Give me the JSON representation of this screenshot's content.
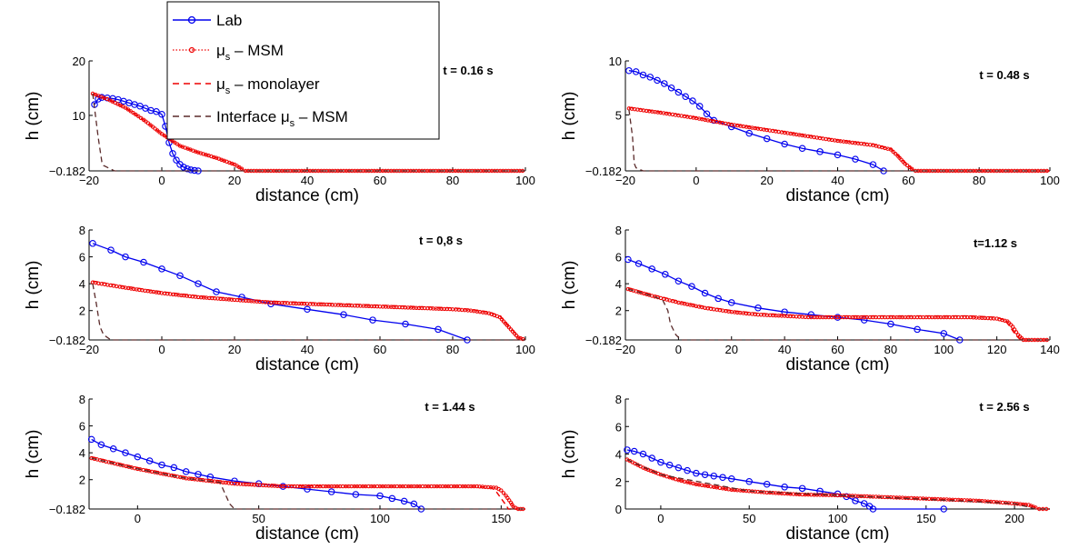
{
  "legend": {
    "entries": [
      {
        "name": "Lab",
        "color": "#0000ee",
        "style": "solid-circle"
      },
      {
        "name": "μ",
        "sub": "s",
        "suffix": " – MSM",
        "color": "#ee0000",
        "style": "dotted-circle"
      },
      {
        "name": "μ",
        "sub": "s",
        "suffix": " – monolayer",
        "color": "#ee0000",
        "style": "dashed"
      },
      {
        "name": "Interface μ",
        "sub": "s",
        "suffix": " – MSM",
        "color": "#5a2a2a",
        "style": "dashed"
      }
    ]
  },
  "chart_data": [
    {
      "type": "line",
      "title": "t = 0.16 s",
      "xlabel": "distance (cm)",
      "ylabel": "h (cm)",
      "xlim": [
        -20,
        100
      ],
      "ylim": [
        -0.182,
        20
      ],
      "xticks": [
        -20,
        0,
        20,
        40,
        60,
        80,
        100
      ],
      "xtick_labels": [
        "−20",
        "0",
        "20",
        "40",
        "60",
        "80",
        "100"
      ],
      "yticks": [
        -0.182,
        10,
        20
      ],
      "ytick_labels": [
        "−0.182",
        "10",
        "20"
      ],
      "series": [
        {
          "name": "Lab",
          "x": [
            -18.5,
            -17.5,
            -16.5,
            -15,
            -13.5,
            -12,
            -10.5,
            -9,
            -7.5,
            -6,
            -4.5,
            -3,
            -1.5,
            0,
            1,
            2,
            3,
            4,
            5,
            6,
            7,
            8,
            9,
            10
          ],
          "y": [
            12,
            13,
            13.3,
            13.2,
            13.1,
            12.9,
            12.6,
            12.3,
            12,
            11.7,
            11.3,
            10.9,
            10.7,
            10.2,
            8,
            5,
            3,
            1.8,
            1,
            0.5,
            0.2,
            0,
            -0.1,
            -0.182
          ]
        },
        {
          "name": "μs – MSM",
          "x": [
            -19,
            -15,
            -10,
            -5,
            0,
            5,
            10,
            15,
            20,
            22,
            23,
            30,
            40,
            50,
            60,
            70,
            80,
            90,
            100
          ],
          "y": [
            14,
            13,
            11.4,
            9.2,
            6.6,
            4.4,
            3.2,
            2.2,
            1,
            0.2,
            -0.182,
            -0.182,
            -0.182,
            -0.182,
            -0.182,
            -0.182,
            -0.182,
            -0.182,
            -0.182
          ]
        },
        {
          "name": "μs – monolayer",
          "x": [
            -19,
            -15,
            -10,
            -5,
            0,
            5,
            10,
            15,
            20,
            22,
            23,
            100
          ],
          "y": [
            14,
            13,
            11.4,
            9.2,
            6.6,
            4.4,
            3.2,
            2.2,
            1,
            0.2,
            -0.182,
            -0.182
          ]
        },
        {
          "name": "Interface μs – MSM",
          "x": [
            -19,
            -17.5,
            -16.5,
            -16,
            -13,
            100
          ],
          "y": [
            14,
            6,
            1.5,
            0.8,
            -0.182,
            -0.182
          ]
        }
      ]
    },
    {
      "type": "line",
      "title": "t = 0.48 s",
      "xlabel": "distance (cm)",
      "ylabel": "h (cm)",
      "xlim": [
        -20,
        100
      ],
      "ylim": [
        -0.182,
        10
      ],
      "xticks": [
        -20,
        0,
        20,
        40,
        60,
        80,
        100
      ],
      "xtick_labels": [
        "−20",
        "0",
        "20",
        "40",
        "60",
        "80",
        "100"
      ],
      "yticks": [
        -0.182,
        5,
        10
      ],
      "ytick_labels": [
        "−0.182",
        "5",
        "10"
      ],
      "series": [
        {
          "name": "Lab",
          "x": [
            -19,
            -17,
            -15,
            -13,
            -11,
            -9,
            -7,
            -5,
            -3,
            -1,
            1,
            3,
            5,
            10,
            15,
            20,
            25,
            30,
            35,
            40,
            45,
            50,
            53
          ],
          "y": [
            9.1,
            9,
            8.7,
            8.5,
            8.2,
            7.9,
            7.5,
            7.1,
            6.7,
            6.3,
            5.8,
            5.1,
            4.5,
            3.9,
            3.3,
            2.8,
            2.3,
            1.9,
            1.6,
            1.3,
            0.9,
            0.4,
            -0.182
          ]
        },
        {
          "name": "μs – MSM",
          "x": [
            -19,
            -10,
            0,
            10,
            20,
            30,
            40,
            50,
            55,
            57,
            59,
            61,
            62,
            70,
            80,
            90,
            100
          ],
          "y": [
            5.6,
            5.2,
            4.7,
            4.1,
            3.6,
            3.1,
            2.6,
            2.2,
            1.8,
            1.2,
            0.5,
            0,
            -0.182,
            -0.182,
            -0.182,
            -0.182,
            -0.182
          ]
        },
        {
          "name": "μs – monolayer",
          "x": [
            -19,
            -10,
            0,
            10,
            20,
            30,
            40,
            50,
            55,
            57,
            59,
            61,
            62,
            100
          ],
          "y": [
            5.7,
            5.3,
            4.8,
            4.2,
            3.7,
            3.2,
            2.7,
            2.3,
            1.9,
            1.3,
            0.6,
            0,
            -0.182,
            -0.182
          ]
        },
        {
          "name": "Interface μs – MSM",
          "x": [
            -19,
            -18,
            -17.5,
            -17,
            -15,
            100
          ],
          "y": [
            5.5,
            3,
            0.5,
            0.1,
            -0.182,
            -0.182
          ]
        }
      ]
    },
    {
      "type": "line",
      "title": "t = 0,8 s",
      "xlabel": "distance (cm)",
      "ylabel": "h (cm)",
      "xlim": [
        -20,
        100
      ],
      "ylim": [
        -0.182,
        8
      ],
      "xticks": [
        -20,
        0,
        20,
        40,
        60,
        80,
        100
      ],
      "xtick_labels": [
        "−20",
        "0",
        "20",
        "40",
        "60",
        "80",
        "100"
      ],
      "yticks": [
        -0.182,
        2,
        4,
        6,
        8
      ],
      "ytick_labels": [
        "−0.182",
        "2",
        "4",
        "6",
        "8"
      ],
      "series": [
        {
          "name": "Lab",
          "x": [
            -19,
            -14,
            -10,
            -5,
            0,
            5,
            10,
            15,
            22,
            30,
            40,
            50,
            58,
            67,
            76,
            84
          ],
          "y": [
            7,
            6.5,
            6,
            5.6,
            5.1,
            4.6,
            4,
            3.4,
            3,
            2.5,
            2.1,
            1.7,
            1.3,
            1,
            0.6,
            -0.182
          ]
        },
        {
          "name": "μs – MSM",
          "x": [
            -19,
            -10,
            0,
            10,
            20,
            30,
            40,
            50,
            60,
            70,
            80,
            85,
            90,
            93,
            95,
            97,
            98,
            100
          ],
          "y": [
            4.1,
            3.7,
            3.3,
            3,
            2.8,
            2.6,
            2.5,
            2.4,
            2.3,
            2.2,
            2.1,
            2,
            1.8,
            1.5,
            0.9,
            0.3,
            0,
            -0.182
          ]
        },
        {
          "name": "μs – monolayer",
          "x": [
            -19,
            -10,
            0,
            10,
            20,
            30,
            40,
            50,
            60,
            70,
            80,
            85,
            90,
            93,
            95,
            97,
            98,
            100
          ],
          "y": [
            4.2,
            3.8,
            3.4,
            3.1,
            2.9,
            2.7,
            2.6,
            2.5,
            2.4,
            2.3,
            2.2,
            2.1,
            1.9,
            1.6,
            1,
            0.4,
            0,
            -0.182
          ]
        },
        {
          "name": "Interface μs – MSM",
          "x": [
            -19,
            -18,
            -17,
            -16,
            -14,
            100
          ],
          "y": [
            4,
            2.5,
            0.8,
            0.2,
            -0.182,
            -0.182
          ]
        }
      ]
    },
    {
      "type": "line",
      "title": "t=1.12 s",
      "xlabel": "distance (cm)",
      "ylabel": "h (cm)",
      "xlim": [
        -20,
        140
      ],
      "ylim": [
        -0.182,
        8
      ],
      "xticks": [
        -20,
        0,
        20,
        40,
        60,
        80,
        100,
        120,
        140
      ],
      "xtick_labels": [
        "−20",
        "0",
        "20",
        "40",
        "60",
        "80",
        "100",
        "120",
        "140"
      ],
      "yticks": [
        -0.182,
        2,
        4,
        6,
        8
      ],
      "ytick_labels": [
        "−0.182",
        "2",
        "4",
        "6",
        "8"
      ],
      "series": [
        {
          "name": "Lab",
          "x": [
            -19,
            -15,
            -10,
            -5,
            0,
            5,
            10,
            15,
            20,
            30,
            40,
            50,
            60,
            70,
            80,
            90,
            100,
            106
          ],
          "y": [
            5.8,
            5.5,
            5.1,
            4.7,
            4.2,
            3.8,
            3.3,
            2.9,
            2.6,
            2.2,
            1.9,
            1.7,
            1.5,
            1.3,
            1,
            0.6,
            0.3,
            -0.182
          ]
        },
        {
          "name": "μs – MSM",
          "x": [
            -19,
            -10,
            0,
            10,
            20,
            30,
            40,
            50,
            60,
            70,
            80,
            90,
            100,
            110,
            120,
            124,
            126,
            128,
            130,
            132,
            140
          ],
          "y": [
            3.6,
            3.1,
            2.6,
            2.2,
            1.9,
            1.7,
            1.6,
            1.5,
            1.5,
            1.5,
            1.5,
            1.5,
            1.5,
            1.5,
            1.4,
            1.2,
            0.8,
            0.2,
            -0.182,
            -0.182,
            -0.182
          ]
        },
        {
          "name": "μs – monolayer",
          "x": [
            -19,
            -10,
            0,
            10,
            20,
            30,
            40,
            50,
            60,
            70,
            80,
            90,
            100,
            110,
            120,
            123,
            125,
            127,
            129,
            140
          ],
          "y": [
            3.7,
            3.2,
            2.7,
            2.3,
            2,
            1.8,
            1.7,
            1.6,
            1.6,
            1.6,
            1.6,
            1.6,
            1.6,
            1.6,
            1.5,
            1.3,
            0.8,
            0.2,
            -0.182,
            -0.182
          ]
        },
        {
          "name": "Interface μs – MSM",
          "x": [
            -19,
            -10,
            -6,
            -4,
            -3,
            -1,
            1,
            140
          ],
          "y": [
            3.6,
            3.1,
            2.8,
            2,
            1,
            0.2,
            -0.182,
            -0.182
          ]
        }
      ]
    },
    {
      "type": "line",
      "title": "t = 1.44 s",
      "xlabel": "distance (cm)",
      "ylabel": "h (cm)",
      "xlim": [
        -20,
        160
      ],
      "ylim": [
        -0.182,
        8
      ],
      "xticks": [
        0,
        50,
        100,
        150
      ],
      "xtick_labels": [
        "0",
        "50",
        "100",
        "150"
      ],
      "yticks": [
        -0.182,
        2,
        4,
        6,
        8
      ],
      "ytick_labels": [
        "−0.182",
        "2",
        "4",
        "6",
        "8"
      ],
      "series": [
        {
          "name": "Lab",
          "x": [
            -19,
            -15,
            -10,
            -5,
            0,
            5,
            10,
            15,
            20,
            25,
            30,
            40,
            50,
            60,
            70,
            80,
            90,
            100,
            105,
            110,
            114,
            117
          ],
          "y": [
            5,
            4.6,
            4.3,
            4,
            3.7,
            3.4,
            3.1,
            2.9,
            2.6,
            2.4,
            2.2,
            1.9,
            1.7,
            1.5,
            1.3,
            1.1,
            0.9,
            0.8,
            0.6,
            0.4,
            0.2,
            -0.182
          ]
        },
        {
          "name": "μs – MSM",
          "x": [
            -19,
            0,
            20,
            40,
            60,
            80,
            100,
            120,
            140,
            148,
            150,
            152,
            154,
            155,
            157,
            160
          ],
          "y": [
            3.6,
            2.8,
            2.1,
            1.7,
            1.5,
            1.5,
            1.5,
            1.5,
            1.5,
            1.4,
            1.2,
            0.8,
            0.3,
            0,
            -0.182,
            -0.182
          ]
        },
        {
          "name": "μs – monolayer",
          "x": [
            -19,
            0,
            20,
            40,
            60,
            80,
            100,
            120,
            140,
            146,
            148,
            150,
            152,
            153,
            160
          ],
          "y": [
            3.7,
            2.9,
            2.2,
            1.8,
            1.6,
            1.5,
            1.5,
            1.5,
            1.5,
            1.4,
            1.1,
            0.6,
            0.1,
            -0.182,
            -0.182
          ]
        },
        {
          "name": "Interface μs – MSM",
          "x": [
            -19,
            0,
            20,
            34,
            36,
            38,
            40,
            160
          ],
          "y": [
            3.6,
            2.8,
            2.1,
            1.8,
            1,
            0.2,
            -0.182,
            -0.182
          ]
        }
      ]
    },
    {
      "type": "line",
      "title": "t = 2.56 s",
      "xlabel": "distance (cm)",
      "ylabel": "h (cm)",
      "xlim": [
        -20,
        220
      ],
      "ylim": [
        0,
        8
      ],
      "xticks": [
        0,
        50,
        100,
        150,
        200
      ],
      "xtick_labels": [
        "0",
        "50",
        "100",
        "150",
        "200"
      ],
      "yticks": [
        0,
        2,
        4,
        6,
        8
      ],
      "ytick_labels": [
        "0",
        "2",
        "4",
        "6",
        "8"
      ],
      "series": [
        {
          "name": "Lab",
          "x": [
            -19,
            -15,
            -10,
            -5,
            0,
            5,
            10,
            15,
            20,
            25,
            30,
            35,
            40,
            50,
            60,
            70,
            80,
            90,
            100,
            105,
            110,
            115,
            118,
            120,
            160
          ],
          "y": [
            4.3,
            4.2,
            4,
            3.7,
            3.4,
            3.2,
            3,
            2.8,
            2.6,
            2.5,
            2.4,
            2.3,
            2.2,
            2,
            1.8,
            1.6,
            1.5,
            1.3,
            1.1,
            0.9,
            0.6,
            0.4,
            0.2,
            0,
            0
          ]
        },
        {
          "name": "μs – MSM",
          "x": [
            -19,
            -10,
            0,
            10,
            20,
            30,
            40,
            50,
            60,
            80,
            100,
            120,
            140,
            160,
            180,
            200,
            208,
            212,
            214,
            216,
            220
          ],
          "y": [
            3.6,
            3,
            2.5,
            2.1,
            1.8,
            1.6,
            1.4,
            1.3,
            1.2,
            1.05,
            1,
            0.9,
            0.8,
            0.7,
            0.6,
            0.4,
            0.3,
            0.1,
            0,
            0,
            0
          ]
        },
        {
          "name": "μs – monolayer",
          "x": [
            -19,
            -10,
            0,
            10,
            20,
            30,
            40,
            50,
            60,
            80,
            100,
            120,
            140,
            160,
            180,
            200,
            208,
            212,
            214,
            220
          ],
          "y": [
            3.6,
            3,
            2.5,
            2.1,
            1.8,
            1.6,
            1.4,
            1.3,
            1.2,
            1.05,
            1,
            0.9,
            0.8,
            0.7,
            0.6,
            0.4,
            0.3,
            0.1,
            0,
            0
          ]
        },
        {
          "name": "Interface μs – MSM",
          "x": [
            -19,
            0,
            50,
            100,
            150,
            200,
            212,
            220
          ],
          "y": [
            3.6,
            2.5,
            1.3,
            1,
            0.7,
            0.4,
            0,
            0
          ]
        }
      ]
    }
  ]
}
